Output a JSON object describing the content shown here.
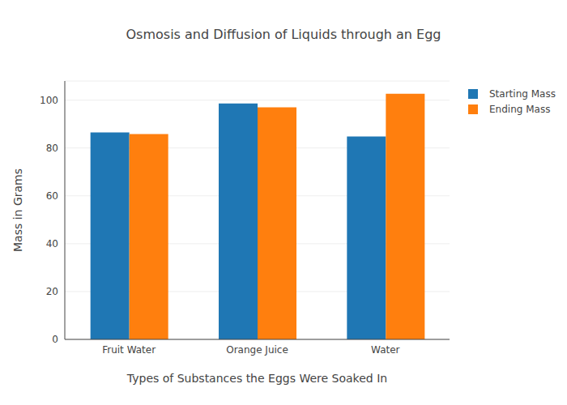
{
  "chart_data": {
    "type": "bar",
    "title": "Osmosis and Diffusion of Liquids through an Egg",
    "x_label": "Types of Substances the Eggs Were Soaked In",
    "y_label": "Mass in Grams",
    "categories": [
      "Fruit Water",
      "Orange Juice",
      "Water"
    ],
    "series": [
      {
        "name": "Starting Mass",
        "color": "#1f77b4",
        "values": [
          86.5,
          98.6,
          84.8
        ]
      },
      {
        "name": "Ending Mass",
        "color": "#ff7f0e",
        "values": [
          85.8,
          97.0,
          102.7
        ]
      }
    ],
    "ylim": [
      0,
      108
    ],
    "yticks": [
      0,
      20,
      40,
      60,
      80,
      100
    ],
    "grid": true,
    "legend": "top-right"
  }
}
